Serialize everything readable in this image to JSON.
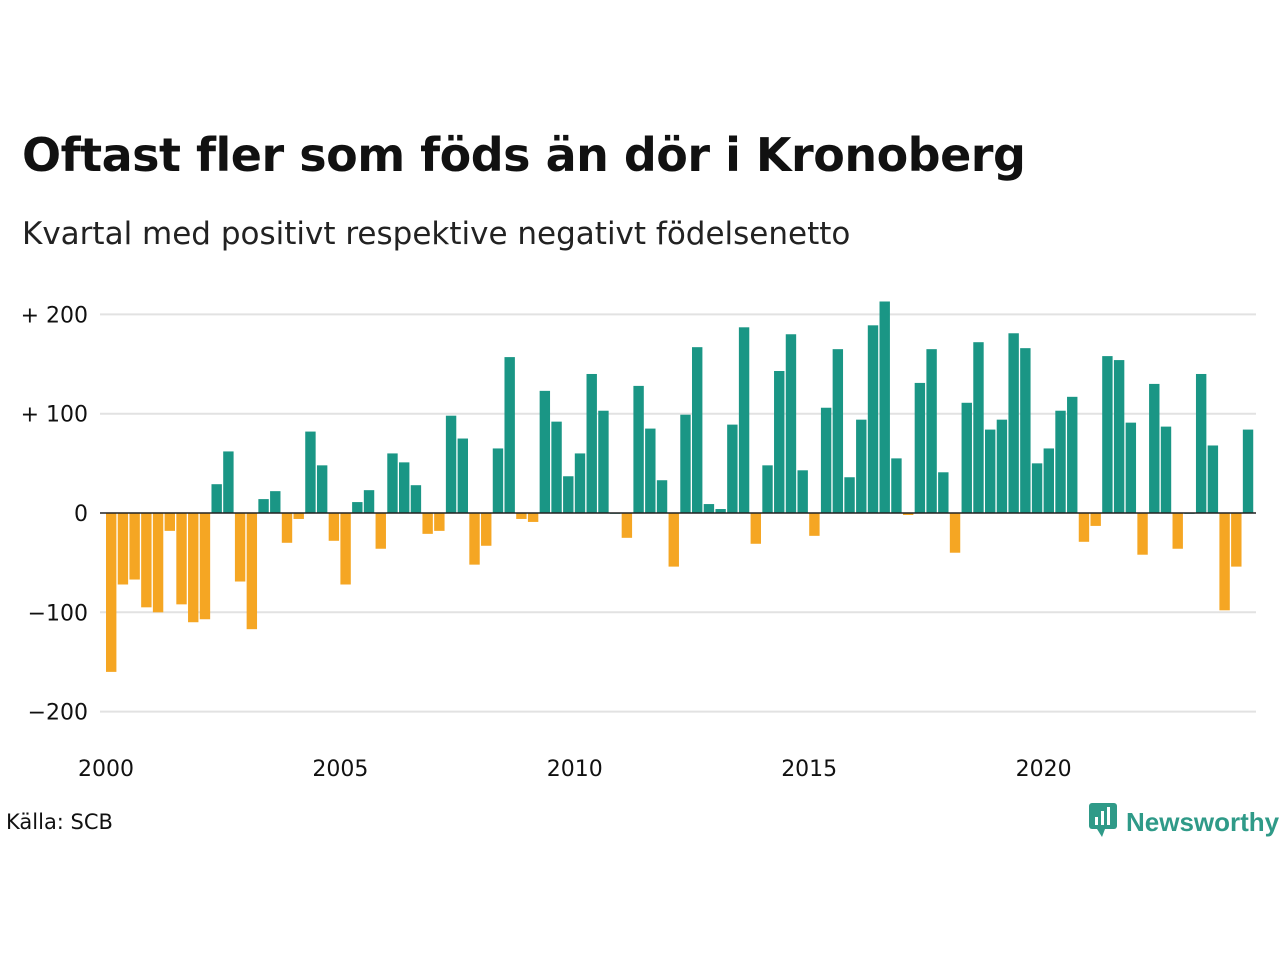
{
  "title": "Oftast fler som föds än dör i Kronoberg",
  "subtitle": "Kvartal med positivt respektive negativt födelsenetto",
  "source": "Källa: SCB",
  "logo": {
    "name": "Newsworthy",
    "icon": "chart-bubble-icon"
  },
  "colors": {
    "positive": "#1a9685",
    "negative": "#f5a623",
    "grid": "#e2e2e2",
    "axis": "#222222"
  },
  "chart_data": {
    "type": "bar",
    "xlabel": "",
    "ylabel": "",
    "ylim": [
      -220,
      220
    ],
    "grid": true,
    "y_ticks": [
      {
        "value": 200,
        "label": "+ 200"
      },
      {
        "value": 100,
        "label": "+ 100"
      },
      {
        "value": 0,
        "label": "0"
      },
      {
        "value": -100,
        "label": "−100"
      },
      {
        "value": -200,
        "label": "−200"
      }
    ],
    "x_ticks": [
      "2000",
      "2005",
      "2010",
      "2015",
      "2020"
    ],
    "start_year": 2000,
    "values": [
      -160,
      -72,
      -67,
      -95,
      -100,
      -18,
      -92,
      -110,
      -107,
      29,
      62,
      -69,
      -117,
      14,
      22,
      -30,
      -6,
      82,
      48,
      -28,
      -72,
      11,
      23,
      -36,
      60,
      51,
      28,
      -21,
      -18,
      98,
      75,
      -52,
      -33,
      65,
      157,
      -6,
      -9,
      123,
      92,
      37,
      60,
      140,
      103,
      0,
      -25,
      128,
      85,
      33,
      -54,
      99,
      167,
      9,
      4,
      89,
      187,
      -31,
      48,
      143,
      180,
      43,
      -23,
      106,
      165,
      36,
      94,
      189,
      213,
      55,
      -2,
      131,
      165,
      41,
      -40,
      111,
      172,
      84,
      94,
      181,
      166,
      50,
      65,
      103,
      117,
      -29,
      -13,
      158,
      154,
      91,
      -42,
      130,
      87,
      -36,
      0,
      140,
      68,
      -98,
      -54,
      84
    ]
  }
}
